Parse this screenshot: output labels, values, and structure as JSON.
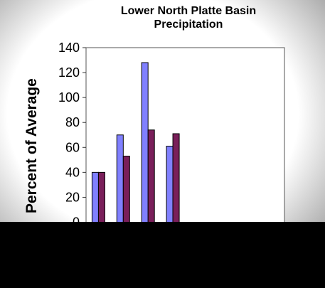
{
  "chart_data": {
    "type": "bar",
    "title": "Lower North Platte Basin Precipitation",
    "ylabel": "Percent of Average",
    "xlabel": "",
    "ylim": [
      0,
      140
    ],
    "yticks": [
      0,
      20,
      40,
      60,
      80,
      100,
      120,
      140
    ],
    "categories": [
      "",
      "",
      "",
      "",
      "",
      "",
      "",
      ""
    ],
    "series": [
      {
        "color": "#8080ff",
        "values": [
          40,
          70,
          128,
          61,
          null,
          null,
          null,
          null
        ]
      },
      {
        "color": "#7a1f5a",
        "values": [
          40,
          53,
          74,
          71,
          null,
          null,
          null,
          null
        ]
      }
    ],
    "grid": false,
    "legend": "none"
  }
}
